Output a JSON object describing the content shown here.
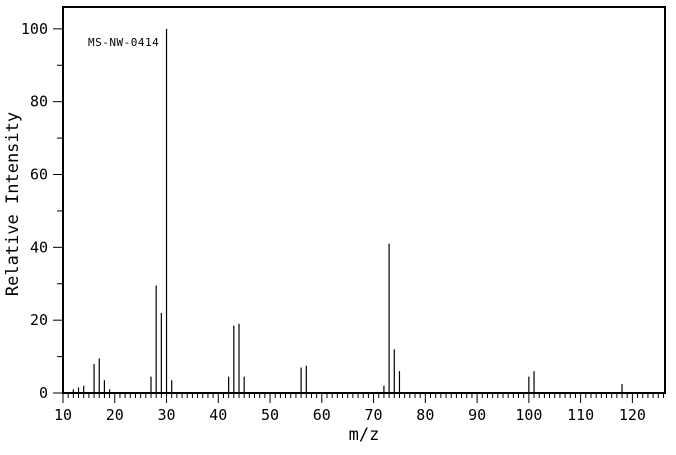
{
  "colors": {
    "foreground": "#000000",
    "background": "#ffffff"
  },
  "chart_data": {
    "type": "bar",
    "subtype": "mass-spectrum-stick-plot",
    "annotation": "MS-NW-0414",
    "xlabel": "m/z",
    "ylabel": "Relative Intensity",
    "xlim": [
      10,
      126.3
    ],
    "ylim": [
      0,
      106
    ],
    "x_major_ticks": [
      10,
      20,
      30,
      40,
      50,
      60,
      70,
      80,
      90,
      100,
      110,
      120
    ],
    "x_minor_tick_step": 1,
    "y_major_ticks": [
      0,
      20,
      40,
      60,
      80,
      100
    ],
    "y_minor_tick_step": 10,
    "grid": false,
    "legend": false,
    "peaks": [
      {
        "mz": 12,
        "intensity": 1
      },
      {
        "mz": 13,
        "intensity": 1.5
      },
      {
        "mz": 14,
        "intensity": 2
      },
      {
        "mz": 16,
        "intensity": 8
      },
      {
        "mz": 17,
        "intensity": 9.5
      },
      {
        "mz": 18,
        "intensity": 3.5
      },
      {
        "mz": 19,
        "intensity": 1
      },
      {
        "mz": 27,
        "intensity": 4.5
      },
      {
        "mz": 28,
        "intensity": 29.5
      },
      {
        "mz": 29,
        "intensity": 22
      },
      {
        "mz": 30,
        "intensity": 100
      },
      {
        "mz": 31,
        "intensity": 3.5
      },
      {
        "mz": 42,
        "intensity": 4.5
      },
      {
        "mz": 43,
        "intensity": 18.5
      },
      {
        "mz": 44,
        "intensity": 19
      },
      {
        "mz": 45,
        "intensity": 4.5
      },
      {
        "mz": 56,
        "intensity": 7
      },
      {
        "mz": 57,
        "intensity": 7.5
      },
      {
        "mz": 72,
        "intensity": 2
      },
      {
        "mz": 73,
        "intensity": 41
      },
      {
        "mz": 74,
        "intensity": 12
      },
      {
        "mz": 75,
        "intensity": 6
      },
      {
        "mz": 100,
        "intensity": 4.5
      },
      {
        "mz": 101,
        "intensity": 6
      },
      {
        "mz": 118,
        "intensity": 2.5
      }
    ]
  }
}
